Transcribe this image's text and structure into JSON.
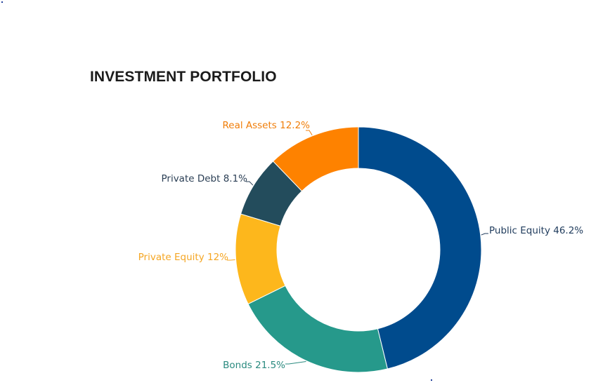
{
  "title": "INVESTMENT PORTFOLIO",
  "chart_data": {
    "type": "pie",
    "variant": "donut",
    "title": "INVESTMENT PORTFOLIO",
    "start_angle_deg": 0,
    "direction": "clockwise",
    "slices": [
      {
        "label": "Public Equity",
        "value": 46.2,
        "color": "#004b8d",
        "label_color": "#1f3b5c",
        "text": "Public Equity 46.2%"
      },
      {
        "label": "Bonds",
        "value": 21.5,
        "color": "#26998b",
        "label_color": "#2a8a7f",
        "text": "Bonds 21.5%"
      },
      {
        "label": "Private Equity",
        "value": 12,
        "color": "#fdb71c",
        "label_color": "#f5a623",
        "text": "Private Equity 12%"
      },
      {
        "label": "Private Debt",
        "value": 8.1,
        "color": "#234c5c",
        "label_color": "#2b3f55",
        "text": "Private Debt 8.1%"
      },
      {
        "label": "Real Assets",
        "value": 12.2,
        "color": "#fe8200",
        "label_color": "#f07e0a",
        "text": "Real Assets 12.2%"
      }
    ],
    "legend": "none",
    "data_labels": "outside with leader lines"
  }
}
